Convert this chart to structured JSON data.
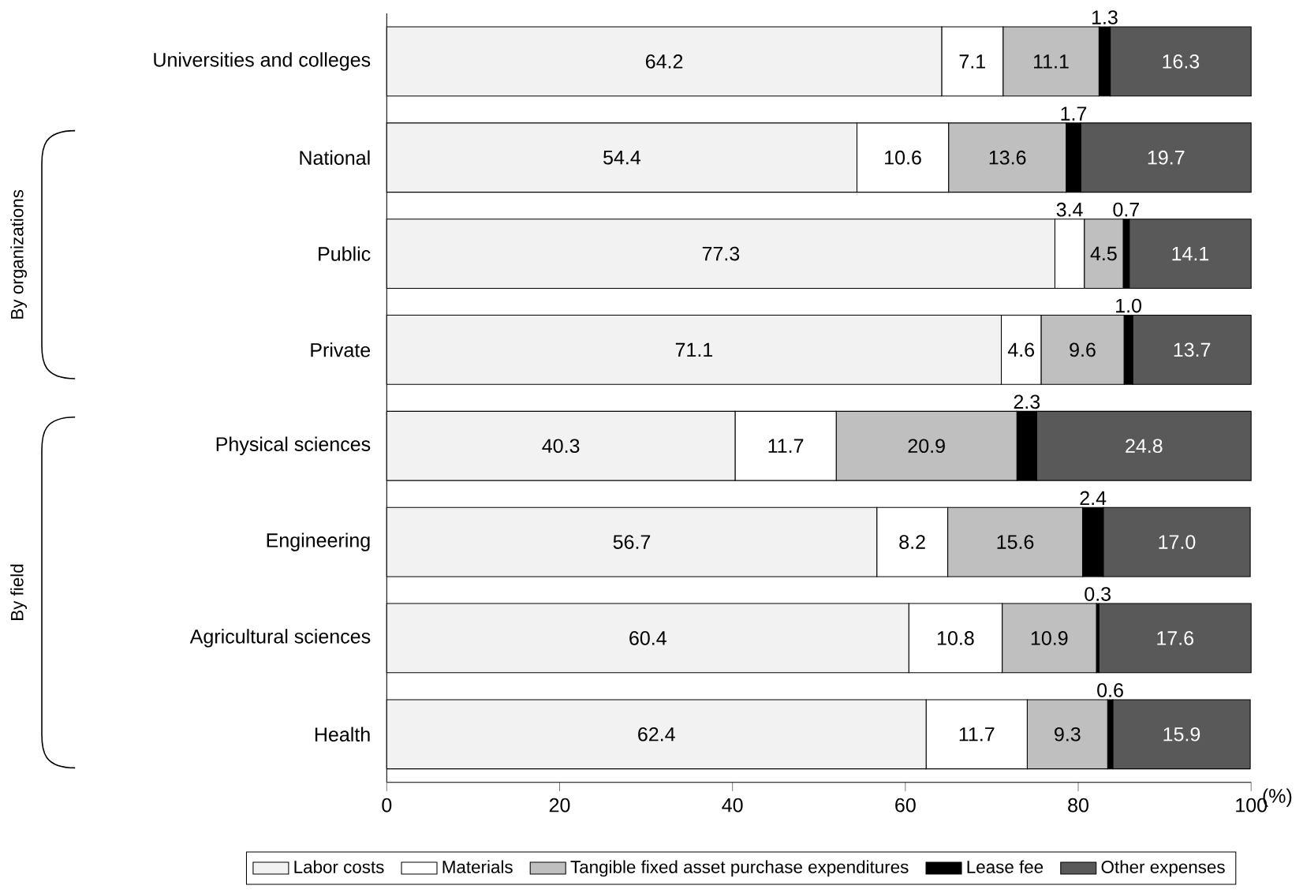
{
  "chart_data": {
    "type": "bar",
    "orientation": "horizontal",
    "stacked": true,
    "legend": "bottom",
    "grid": false,
    "categories": [
      "Universities and colleges",
      "National",
      "Public",
      "Private",
      "Physical sciences",
      "Engineering",
      "Agricultural sciences",
      "Health"
    ],
    "series": [
      {
        "name": "Labor costs",
        "color": "#f2f2f2",
        "values": [
          64.2,
          54.4,
          77.3,
          71.1,
          40.3,
          56.7,
          60.4,
          62.4
        ],
        "value_labels": [
          "64.2",
          "54.4",
          "77.3",
          "71.1",
          "40.3",
          "56.7",
          "60.4",
          "62.4"
        ]
      },
      {
        "name": "Materials",
        "color": "#ffffff",
        "values": [
          7.1,
          10.6,
          3.4,
          4.6,
          11.7,
          8.2,
          10.8,
          11.7
        ],
        "value_labels": [
          "7.1",
          "10.6",
          "3.4",
          "4.6",
          "11.7",
          "8.2",
          "10.8",
          "11.7"
        ]
      },
      {
        "name": "Tangible fixed asset purchase expenditures",
        "color": "#bfbfbf",
        "values": [
          11.1,
          13.6,
          4.5,
          9.6,
          20.9,
          15.6,
          10.9,
          9.3
        ],
        "value_labels": [
          "11.1",
          "13.6",
          "4.5",
          "9.6",
          "20.9",
          "15.6",
          "10.9",
          "9.3"
        ]
      },
      {
        "name": "Lease fee",
        "color": "#000000",
        "values": [
          1.3,
          1.7,
          0.7,
          1.0,
          2.3,
          2.4,
          0.3,
          0.6
        ],
        "value_labels": [
          "1.3",
          "1.7",
          "0.7",
          "1.0",
          "2.3",
          "2.4",
          "0.3",
          "0.6"
        ]
      },
      {
        "name": "Other expenses",
        "color": "#595959",
        "values": [
          16.3,
          19.7,
          14.1,
          13.7,
          24.8,
          17.0,
          17.6,
          15.9
        ],
        "value_labels": [
          "16.3",
          "19.7",
          "14.1",
          "13.7",
          "24.8",
          "17.0",
          "17.6",
          "15.9"
        ]
      }
    ],
    "xlim": [
      0,
      100
    ],
    "xticks": [
      0,
      20,
      40,
      60,
      80,
      100
    ],
    "xlabel": "(%)",
    "annotations": [
      "By organizations",
      "By field"
    ]
  }
}
